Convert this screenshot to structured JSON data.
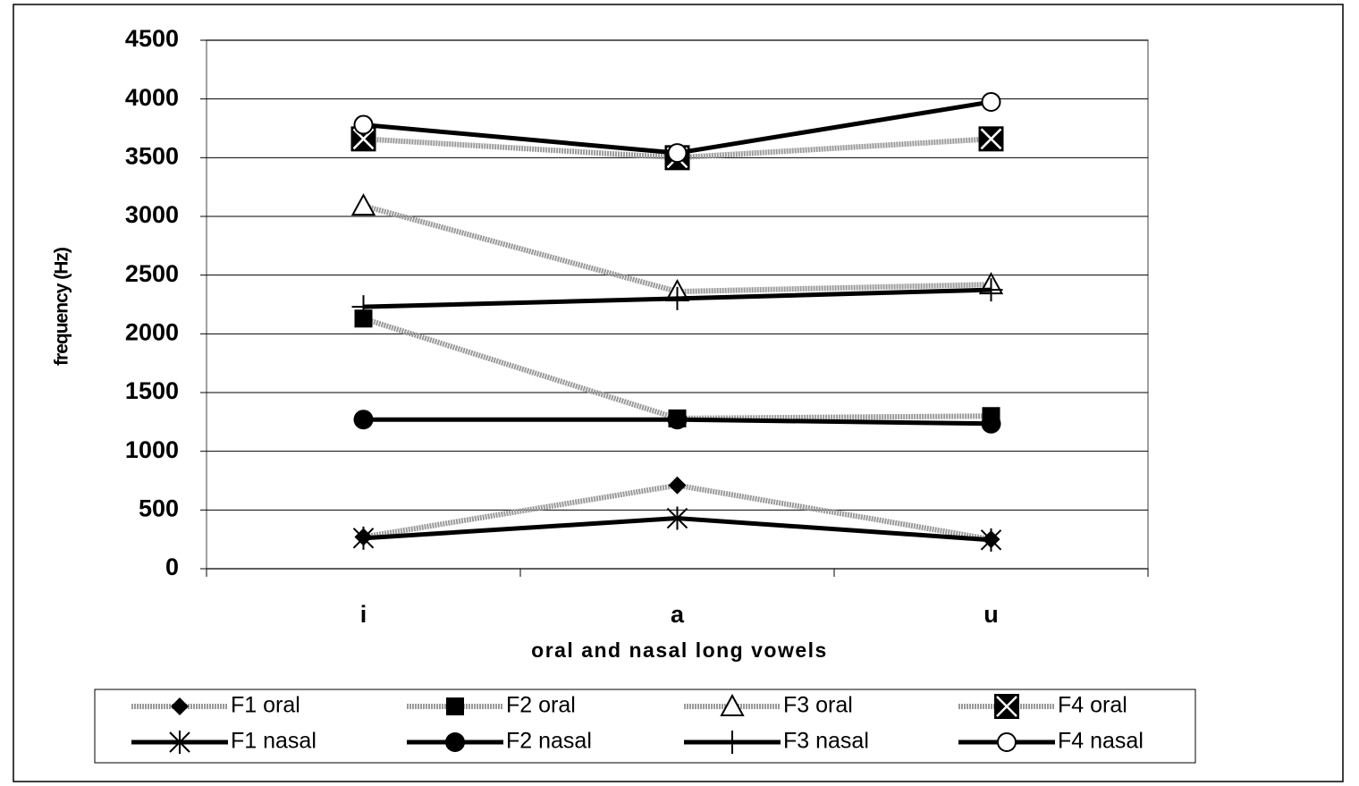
{
  "chart_data": {
    "type": "line",
    "x_label": "oral and nasal long vowels",
    "y_label": "frequency (Hz)",
    "categories": [
      "i",
      "a",
      "u"
    ],
    "ylim": [
      0,
      4500
    ],
    "yticks": [
      0,
      500,
      1000,
      1500,
      2000,
      2500,
      3000,
      3500,
      4000,
      4500
    ],
    "grid": true,
    "legend": "bottom",
    "series": [
      {
        "name": "F1 oral",
        "color": "#9a9a9a",
        "marker": "diamond",
        "values": [
          270,
          710,
          250
        ]
      },
      {
        "name": "F2 oral",
        "color": "#9a9a9a",
        "marker": "square",
        "values": [
          2130,
          1280,
          1300
        ]
      },
      {
        "name": "F3 oral",
        "color": "#9a9a9a",
        "marker": "triangle",
        "values": [
          3090,
          2360,
          2420
        ]
      },
      {
        "name": "F4 oral",
        "color": "#9a9a9a",
        "marker": "xsquare",
        "values": [
          3660,
          3500,
          3660
        ]
      },
      {
        "name": "F1 nasal",
        "color": "#000000",
        "marker": "asterisk",
        "values": [
          260,
          430,
          245
        ]
      },
      {
        "name": "F2 nasal",
        "color": "#000000",
        "marker": "circle",
        "values": [
          1270,
          1270,
          1235
        ]
      },
      {
        "name": "F3 nasal",
        "color": "#000000",
        "marker": "plus",
        "values": [
          2230,
          2300,
          2375
        ]
      },
      {
        "name": "F4 nasal",
        "color": "#000000",
        "marker": "opencircle",
        "values": [
          3780,
          3540,
          3975
        ]
      }
    ]
  }
}
